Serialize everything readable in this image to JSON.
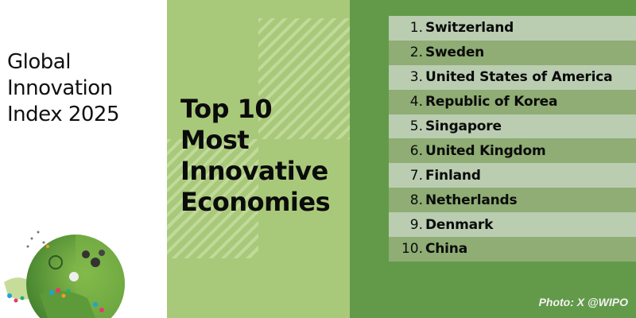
{
  "left_panel": {
    "title_lines": [
      "Global",
      "Innovation",
      "Index 2025"
    ]
  },
  "middle_panel": {
    "heading_lines": [
      "Top 10",
      "Most",
      "Innovative",
      "Economies"
    ]
  },
  "ranking": [
    {
      "rank": "1.",
      "name": "Switzerland"
    },
    {
      "rank": "2.",
      "name": "Sweden"
    },
    {
      "rank": "3.",
      "name": "United States of America"
    },
    {
      "rank": "4.",
      "name": "Republic of Korea"
    },
    {
      "rank": "5.",
      "name": "Singapore"
    },
    {
      "rank": "6.",
      "name": "United Kingdom"
    },
    {
      "rank": "7.",
      "name": "Finland"
    },
    {
      "rank": "8.",
      "name": "Netherlands"
    },
    {
      "rank": "9.",
      "name": "Denmark"
    },
    {
      "rank": "10.",
      "name": "China"
    }
  ],
  "credit": "Photo: X @WIPO",
  "colors": {
    "white_panel": "#ffffff",
    "light_green": "#a9c97a",
    "dark_green": "#629a4a",
    "row_light": "#bacdb1",
    "row_dark": "#8fad74"
  }
}
